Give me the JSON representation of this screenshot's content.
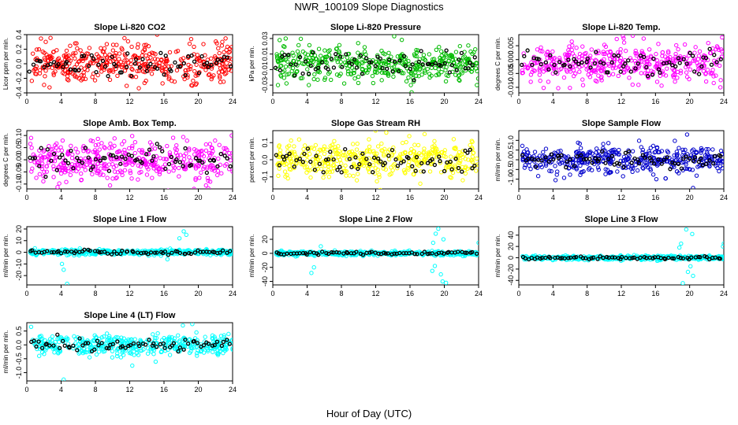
{
  "figure": {
    "title": "NWR_100109  Slope Diagnostics",
    "xlabel": "Hour of Day (UTC)"
  },
  "chart_data": [
    {
      "type": "scatter",
      "title": "Slope Li-820 CO2",
      "ylabel": "Licor ppm per min.",
      "color": "#ff0000",
      "xlim": [
        0,
        24
      ],
      "ylim": [
        -0.4,
        0.4
      ],
      "xticks": [
        0,
        4,
        8,
        12,
        16,
        20,
        24
      ],
      "yticks": [
        -0.4,
        -0.2,
        0.0,
        0.2,
        0.4
      ],
      "ytick_labels": [
        "-0.4",
        "-0.2",
        "0.0",
        "0.2",
        "0.4"
      ],
      "spread": 0.13,
      "outliers": [
        [
          5.8,
          0.28
        ],
        [
          15.2,
          0.4
        ],
        [
          19.3,
          -0.3
        ],
        [
          20.6,
          0.27
        ],
        [
          9.7,
          -0.22
        ],
        [
          22.8,
          0.3
        ]
      ]
    },
    {
      "type": "scatter",
      "title": "Slope Li-820 Pressure",
      "ylabel": "kPa per min.",
      "color": "#00bb00",
      "xlim": [
        0,
        24
      ],
      "ylim": [
        -0.04,
        0.035
      ],
      "xticks": [
        0,
        4,
        8,
        12,
        16,
        20,
        24
      ],
      "yticks": [
        -0.03,
        -0.01,
        0.01,
        0.03
      ],
      "ytick_labels": [
        "-0.03",
        "-0.01",
        "0.01",
        "0.03"
      ],
      "spread": 0.011,
      "outliers": [
        [
          1.5,
          0.03
        ],
        [
          0.8,
          0.028
        ],
        [
          4.2,
          -0.03
        ],
        [
          23.8,
          -0.03
        ],
        [
          16.1,
          -0.03
        ],
        [
          0.6,
          -0.03
        ]
      ]
    },
    {
      "type": "scatter",
      "title": "Slope Li-820 Temp.",
      "ylabel": "degrees C per min.",
      "color": "#ff00ff",
      "xlim": [
        0,
        24
      ],
      "ylim": [
        -0.012,
        0.009
      ],
      "xticks": [
        0,
        4,
        8,
        12,
        16,
        20,
        24
      ],
      "yticks": [
        -0.01,
        -0.005,
        0.0,
        0.005
      ],
      "ytick_labels": [
        "-0.010",
        "-0.005",
        "0.000",
        "0.005"
      ],
      "spread": 0.0035,
      "outliers": [
        [
          23.8,
          0.008
        ],
        [
          1.4,
          -0.008
        ],
        [
          16.2,
          -0.008
        ],
        [
          23.6,
          -0.01
        ],
        [
          6.2,
          0.0065
        ]
      ]
    },
    {
      "type": "scatter",
      "title": "Slope Amb. Box Temp.",
      "ylabel": "degrees C per min.",
      "color": "#ff00ff",
      "xlim": [
        0,
        24
      ],
      "ylim": [
        -0.12,
        0.12
      ],
      "xticks": [
        0,
        4,
        8,
        12,
        16,
        20,
        24
      ],
      "yticks": [
        -0.1,
        -0.05,
        0.0,
        0.05,
        0.1
      ],
      "ytick_labels": [
        "-0.10",
        "-0.05",
        "0.00",
        "0.05",
        "0.10"
      ],
      "spread": 0.04,
      "outliers": [
        [
          19.5,
          -0.12
        ],
        [
          0.5,
          0.09
        ],
        [
          23.9,
          0.1
        ]
      ]
    },
    {
      "type": "scatter",
      "title": "Slope Gas Stream RH",
      "ylabel": "percent per min.",
      "color": "#ffff00",
      "xlim": [
        0,
        24
      ],
      "ylim": [
        -0.17,
        0.17
      ],
      "xticks": [
        0,
        4,
        8,
        12,
        16,
        20,
        24
      ],
      "yticks": [
        -0.1,
        0.0,
        0.1
      ],
      "ytick_labels": [
        "-0.1",
        "0.0",
        "0.1"
      ],
      "spread": 0.055,
      "outliers": [
        [
          17.7,
          0.15
        ],
        [
          23.2,
          0.11
        ],
        [
          9.8,
          -0.12
        ],
        [
          21.1,
          0.12
        ]
      ]
    },
    {
      "type": "scatter",
      "title": "Slope Sample Flow",
      "ylabel": "ml/min per min.",
      "color": "#0000cc",
      "xlim": [
        0,
        24
      ],
      "ylim": [
        -1.5,
        1.5
      ],
      "xticks": [
        0,
        4,
        8,
        12,
        16,
        20,
        24
      ],
      "yticks": [
        -1.0,
        -0.5,
        0.0,
        0.5,
        1.0
      ],
      "ytick_labels": [
        "-1.0",
        "-0.5",
        "0.0",
        "0.5",
        "1.0"
      ],
      "spread": 0.33,
      "outliers": [
        [
          19.7,
          1.3
        ],
        [
          20.4,
          -1.45
        ],
        [
          12.2,
          -0.85
        ],
        [
          16.1,
          -1.0
        ],
        [
          4.3,
          -1.05
        ]
      ]
    },
    {
      "type": "scatter",
      "title": "Slope Line 1 Flow",
      "ylabel": "ml/min per min.",
      "color": "#00ffff",
      "xlim": [
        0,
        24
      ],
      "ylim": [
        -28,
        22
      ],
      "xticks": [
        0,
        4,
        8,
        12,
        16,
        20,
        24
      ],
      "yticks": [
        -20,
        -10,
        0,
        10,
        20
      ],
      "ytick_labels": [
        "-20",
        "-10",
        "0",
        "10",
        "20"
      ],
      "spread": 1.2,
      "outliers": [
        [
          18.3,
          18
        ],
        [
          18.6,
          15
        ],
        [
          4.3,
          -15
        ],
        [
          4.1,
          -10
        ],
        [
          4.7,
          -27
        ],
        [
          17.8,
          12
        ],
        [
          16.4,
          -6
        ]
      ]
    },
    {
      "type": "scatter",
      "title": "Slope Line 2 Flow",
      "ylabel": "ml/min per min.",
      "color": "#00ffff",
      "xlim": [
        0,
        24
      ],
      "ylim": [
        -45,
        38
      ],
      "xticks": [
        0,
        4,
        8,
        12,
        16,
        20,
        24
      ],
      "yticks": [
        -40,
        -20,
        0,
        20
      ],
      "ytick_labels": [
        "-40",
        "-20",
        "0",
        "20"
      ],
      "spread": 1.5,
      "outliers": [
        [
          19.3,
          35
        ],
        [
          19.0,
          28
        ],
        [
          18.7,
          15
        ],
        [
          18.6,
          -25
        ],
        [
          19.8,
          -40
        ],
        [
          19.6,
          -30
        ],
        [
          4.8,
          -20
        ],
        [
          4.5,
          -28
        ],
        [
          5.6,
          10
        ],
        [
          24.0,
          15
        ],
        [
          20.2,
          -42
        ],
        [
          19.9,
          20
        ],
        [
          18.9,
          -18
        ]
      ]
    },
    {
      "type": "scatter",
      "title": "Slope Line 3 Flow",
      "ylabel": "ml/min per min.",
      "color": "#00ffff",
      "xlim": [
        0,
        24
      ],
      "ylim": [
        -48,
        55
      ],
      "xticks": [
        0,
        4,
        8,
        12,
        16,
        20,
        24
      ],
      "yticks": [
        -40,
        -20,
        0,
        20,
        40
      ],
      "ytick_labels": [
        "-40",
        "-20",
        "0",
        "20",
        "40"
      ],
      "spread": 1.8,
      "outliers": [
        [
          19.6,
          50
        ],
        [
          20.3,
          42
        ],
        [
          19.0,
          25
        ],
        [
          19.2,
          -45
        ],
        [
          20.4,
          -32
        ],
        [
          19.8,
          -25
        ],
        [
          18.8,
          18
        ],
        [
          20.1,
          -15
        ],
        [
          23.9,
          20
        ],
        [
          24.0,
          25
        ]
      ]
    },
    {
      "type": "scatter",
      "title": "Slope Line 4 (LT) Flow",
      "ylabel": "ml/min per min.",
      "color": "#00ffff",
      "xlim": [
        0,
        24
      ],
      "ylim": [
        -1.3,
        0.8
      ],
      "xticks": [
        0,
        4,
        8,
        12,
        16,
        20,
        24
      ],
      "yticks": [
        -1.0,
        -0.5,
        0.0,
        0.5
      ],
      "ytick_labels": [
        "-1.0",
        "-0.5",
        "0.0",
        "0.5"
      ],
      "spread": 0.18,
      "outliers": [
        [
          4.3,
          -1.25
        ],
        [
          12.3,
          -0.75
        ],
        [
          0.5,
          0.65
        ],
        [
          18.2,
          0.7
        ],
        [
          19.3,
          0.75
        ]
      ]
    }
  ]
}
